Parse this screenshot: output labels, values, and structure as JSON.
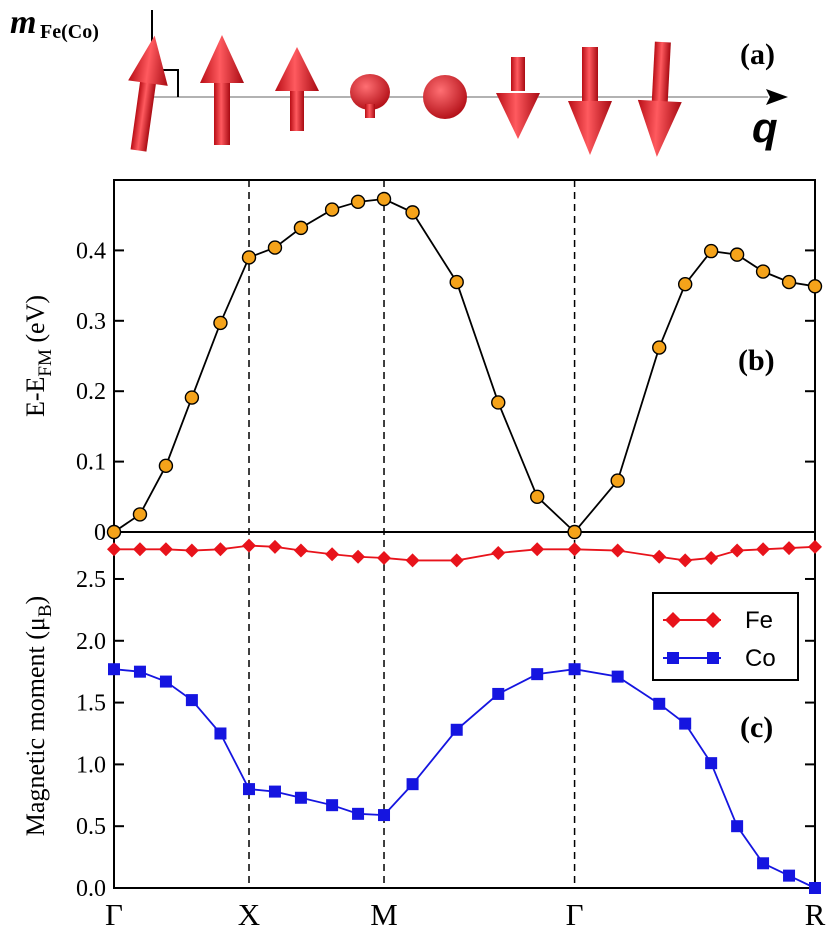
{
  "panel_a": {
    "label": "(a)",
    "moment_symbol": "m",
    "moment_subscript": "Fe(Co)",
    "wavevector_symbol": "q",
    "arrow_color": "#e8202a"
  },
  "chart_data": [
    {
      "type": "line",
      "panel": "(b)",
      "ylabel_main": "E-E",
      "ylabel_sub": "FM",
      "ylabel_unit": " (eV)",
      "ylim": [
        0,
        0.5
      ],
      "yticks": [
        0,
        0.1,
        0.2,
        0.3,
        0.4
      ],
      "ytick_labels": [
        "0",
        "0.1",
        "0.2",
        "0.3",
        "0.4"
      ],
      "xlim": [
        0,
        13.5
      ],
      "high_symmetry": [
        {
          "label": "Γ",
          "x": 0
        },
        {
          "label": "X",
          "x": 2.6
        },
        {
          "label": "M",
          "x": 5.2
        },
        {
          "label": "Γ",
          "x": 8.87
        },
        {
          "label": "R",
          "x": 13.5
        }
      ],
      "series": [
        {
          "name": "E-E_FM",
          "color": "#f5a31a",
          "marker": "circle",
          "x": [
            0,
            0.5,
            1.0,
            1.5,
            2.05,
            2.6,
            3.1,
            3.6,
            4.2,
            4.7,
            5.2,
            5.75,
            6.6,
            7.4,
            8.15,
            8.87,
            9.7,
            10.5,
            11.0,
            11.5,
            12.0,
            12.5,
            13.0,
            13.5
          ],
          "y": [
            0.0,
            0.025,
            0.094,
            0.191,
            0.297,
            0.39,
            0.404,
            0.432,
            0.458,
            0.469,
            0.473,
            0.454,
            0.355,
            0.184,
            0.05,
            0.0,
            0.073,
            0.262,
            0.352,
            0.399,
            0.394,
            0.37,
            0.355,
            0.349
          ]
        }
      ]
    },
    {
      "type": "line",
      "panel": "(c)",
      "ylabel_main": "Magnetic moment (",
      "ylabel_mu": "μ",
      "ylabel_sub": "B",
      "ylabel_close": ")",
      "ylim": [
        0,
        2.88
      ],
      "yticks": [
        0,
        0.5,
        1.0,
        1.5,
        2.0,
        2.5
      ],
      "ytick_labels": [
        "0.0",
        "0.5",
        "1.0",
        "1.5",
        "2.0",
        "2.5"
      ],
      "xlim": [
        0,
        13.5
      ],
      "legend_position": "top-right",
      "series": [
        {
          "name": "Fe",
          "color": "#e8131b",
          "marker": "diamond",
          "x": [
            0,
            0.5,
            1.0,
            1.5,
            2.05,
            2.6,
            3.1,
            3.6,
            4.2,
            4.7,
            5.2,
            5.75,
            6.6,
            7.4,
            8.15,
            8.87,
            9.7,
            10.5,
            11.0,
            11.5,
            12.0,
            12.5,
            13.0,
            13.5
          ],
          "y": [
            2.74,
            2.74,
            2.74,
            2.73,
            2.74,
            2.77,
            2.76,
            2.73,
            2.7,
            2.68,
            2.67,
            2.65,
            2.65,
            2.71,
            2.74,
            2.74,
            2.73,
            2.68,
            2.65,
            2.67,
            2.73,
            2.74,
            2.75,
            2.76
          ]
        },
        {
          "name": "Co",
          "color": "#1515e0",
          "marker": "square",
          "x": [
            0,
            0.5,
            1.0,
            1.5,
            2.05,
            2.6,
            3.1,
            3.6,
            4.2,
            4.7,
            5.2,
            5.75,
            6.6,
            7.4,
            8.15,
            8.87,
            9.7,
            10.5,
            11.0,
            11.5,
            12.0,
            12.5,
            13.0,
            13.5
          ],
          "y": [
            1.77,
            1.75,
            1.67,
            1.52,
            1.25,
            0.8,
            0.78,
            0.73,
            0.67,
            0.6,
            0.59,
            0.84,
            1.28,
            1.57,
            1.73,
            1.77,
            1.71,
            1.49,
            1.33,
            1.01,
            0.5,
            0.2,
            0.1,
            0.0
          ]
        }
      ]
    }
  ]
}
